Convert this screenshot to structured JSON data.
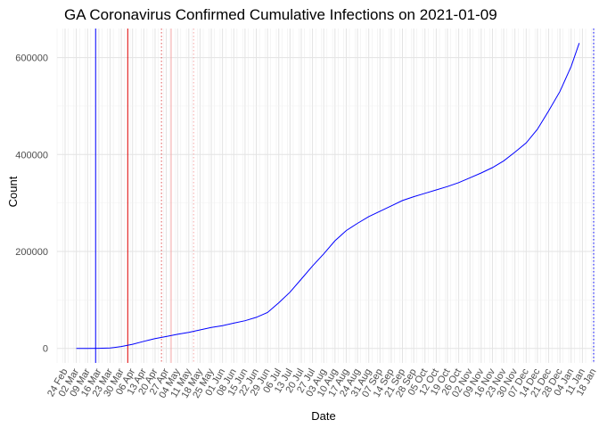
{
  "chart_data": {
    "type": "line",
    "title": "GA Coronavirus Confirmed Cumulative Infections on 2021-01-09",
    "xlabel": "Date",
    "ylabel": "Count",
    "x_range": [
      "2020-02-19",
      "2021-01-18"
    ],
    "ylim": [
      -30000,
      660000
    ],
    "y_ticks": [
      0,
      200000,
      400000,
      600000
    ],
    "x_tick_dates": [
      "2020-02-24",
      "2020-03-02",
      "2020-03-09",
      "2020-03-16",
      "2020-03-23",
      "2020-03-30",
      "2020-04-06",
      "2020-04-13",
      "2020-04-20",
      "2020-04-27",
      "2020-05-04",
      "2020-05-11",
      "2020-05-18",
      "2020-05-25",
      "2020-06-01",
      "2020-06-08",
      "2020-06-15",
      "2020-06-22",
      "2020-06-29",
      "2020-07-06",
      "2020-07-13",
      "2020-07-20",
      "2020-07-27",
      "2020-08-03",
      "2020-08-10",
      "2020-08-17",
      "2020-08-24",
      "2020-08-31",
      "2020-09-07",
      "2020-09-14",
      "2020-09-21",
      "2020-09-28",
      "2020-10-05",
      "2020-10-12",
      "2020-10-19",
      "2020-10-26",
      "2020-11-02",
      "2020-11-09",
      "2020-11-16",
      "2020-11-23",
      "2020-11-30",
      "2020-12-07",
      "2020-12-14",
      "2020-12-21",
      "2020-12-28",
      "2021-01-04",
      "2021-01-11",
      "2021-01-18"
    ],
    "x_tick_labels": [
      "24 Feb",
      "02 Mar",
      "09 Mar",
      "16 Mar",
      "23 Mar",
      "30 Mar",
      "06 Apr",
      "13 Apr",
      "20 Apr",
      "27 Apr",
      "04 May",
      "11 May",
      "18 May",
      "25 May",
      "01 Jun",
      "08 Jun",
      "15 Jun",
      "22 Jun",
      "29 Jun",
      "06 Jul",
      "13 Jul",
      "20 Jul",
      "27 Jul",
      "03 Aug",
      "10 Aug",
      "17 Aug",
      "24 Aug",
      "31 Aug",
      "07 Sep",
      "14 Sep",
      "21 Sep",
      "28 Sep",
      "05 Oct",
      "12 Oct",
      "19 Oct",
      "26 Oct",
      "02 Nov",
      "09 Nov",
      "16 Nov",
      "23 Nov",
      "30 Nov",
      "07 Dec",
      "14 Dec",
      "21 Dec",
      "28 Dec",
      "04 Jan",
      "11 Jan",
      "18 Jan"
    ],
    "grid": true,
    "series": [
      {
        "color": "#0000ff",
        "points": [
          [
            "2020-03-02",
            2
          ],
          [
            "2020-03-09",
            20
          ],
          [
            "2020-03-16",
            120
          ],
          [
            "2020-03-23",
            800
          ],
          [
            "2020-03-30",
            3800
          ],
          [
            "2020-04-06",
            8500
          ],
          [
            "2020-04-13",
            14500
          ],
          [
            "2020-04-20",
            20000
          ],
          [
            "2020-04-27",
            24500
          ],
          [
            "2020-05-04",
            29000
          ],
          [
            "2020-05-11",
            33000
          ],
          [
            "2020-05-18",
            38000
          ],
          [
            "2020-05-25",
            43000
          ],
          [
            "2020-06-01",
            47000
          ],
          [
            "2020-06-08",
            52000
          ],
          [
            "2020-06-15",
            57000
          ],
          [
            "2020-06-22",
            64000
          ],
          [
            "2020-06-29",
            74000
          ],
          [
            "2020-07-06",
            94000
          ],
          [
            "2020-07-13",
            116000
          ],
          [
            "2020-07-20",
            143000
          ],
          [
            "2020-07-27",
            170000
          ],
          [
            "2020-08-03",
            195000
          ],
          [
            "2020-08-10",
            222000
          ],
          [
            "2020-08-17",
            243000
          ],
          [
            "2020-08-24",
            258000
          ],
          [
            "2020-08-31",
            272000
          ],
          [
            "2020-09-07",
            283000
          ],
          [
            "2020-09-14",
            294000
          ],
          [
            "2020-09-21",
            305000
          ],
          [
            "2020-09-28",
            313000
          ],
          [
            "2020-10-05",
            320000
          ],
          [
            "2020-10-12",
            327000
          ],
          [
            "2020-10-19",
            334000
          ],
          [
            "2020-10-26",
            342000
          ],
          [
            "2020-11-02",
            352000
          ],
          [
            "2020-11-09",
            362000
          ],
          [
            "2020-11-16",
            373000
          ],
          [
            "2020-11-23",
            387000
          ],
          [
            "2020-11-30",
            405000
          ],
          [
            "2020-12-07",
            424000
          ],
          [
            "2020-12-14",
            452000
          ],
          [
            "2020-12-21",
            490000
          ],
          [
            "2020-12-28",
            530000
          ],
          [
            "2021-01-04",
            582000
          ],
          [
            "2021-01-09",
            630000
          ]
        ]
      }
    ],
    "reference_lines": [
      {
        "date": "2020-03-14",
        "color": "#0000ff",
        "style": "solid"
      },
      {
        "date": "2020-04-03",
        "color": "#dd0000",
        "style": "solid"
      },
      {
        "date": "2020-04-24",
        "color": "#e05555",
        "style": "dotted"
      },
      {
        "date": "2020-04-30",
        "color": "#f4a6a6",
        "style": "solid"
      },
      {
        "date": "2020-05-14",
        "color": "#f4a6a6",
        "style": "dotted"
      },
      {
        "date": "2021-01-18",
        "color": "#0000ff",
        "style": "dotted"
      }
    ]
  }
}
